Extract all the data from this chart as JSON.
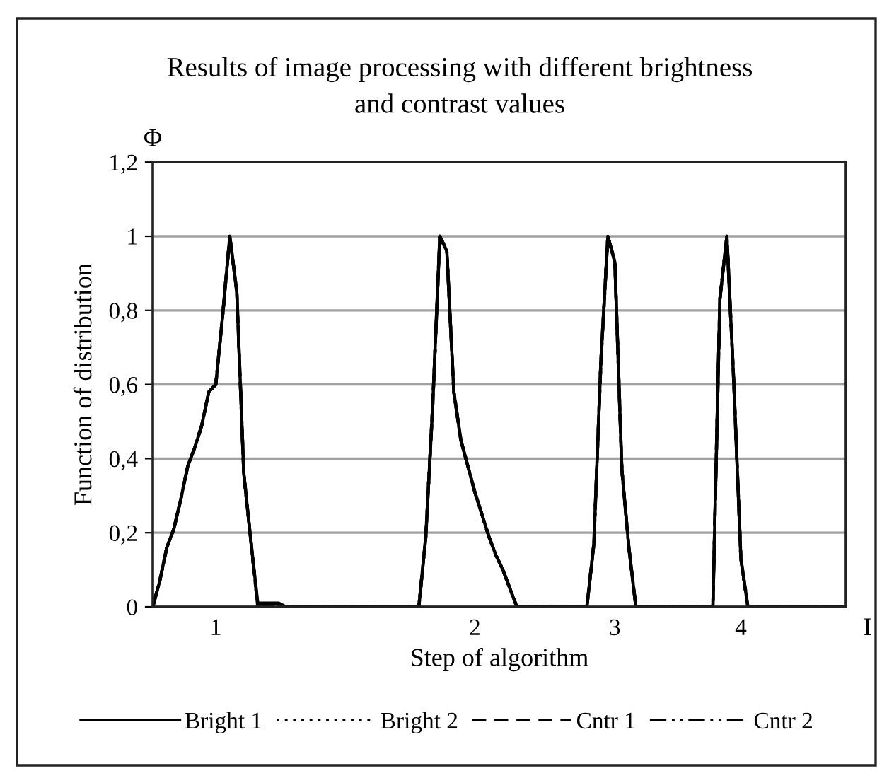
{
  "chart_data": {
    "type": "line",
    "title": "Results of image processing with different brightness\nand contrast values",
    "xlabel": "Step of algorithm",
    "ylabel": "Function of distribution",
    "annotations": [
      "Φ",
      "I"
    ],
    "categories": [
      null,
      null,
      null,
      null,
      null,
      null,
      null,
      null,
      null,
      "1",
      null,
      null,
      null,
      null,
      null,
      null,
      null,
      null,
      null,
      null,
      null,
      null,
      null,
      null,
      null,
      null,
      null,
      null,
      null,
      null,
      null,
      null,
      null,
      null,
      null,
      null,
      null,
      null,
      null,
      null,
      null,
      null,
      null,
      null,
      null,
      null,
      "2",
      null,
      null,
      null,
      null,
      null,
      null,
      null,
      null,
      null,
      null,
      null,
      null,
      null,
      null,
      null,
      null,
      null,
      null,
      null,
      "3",
      null,
      null,
      null,
      null,
      null,
      null,
      null,
      null,
      null,
      null,
      null,
      null,
      null,
      null,
      null,
      null,
      null,
      "4",
      null,
      null,
      null,
      null,
      null,
      null,
      null,
      null,
      null,
      null,
      null,
      null,
      null,
      null,
      null
    ],
    "series": [
      {
        "name": "Bright 1",
        "color": "#000000",
        "line_style": "solid",
        "values": [
          0,
          0.07,
          0.16,
          0.21,
          0.29,
          0.38,
          0.43,
          0.49,
          0.58,
          0.6,
          0.79,
          1.0,
          0.85,
          0.36,
          0.18,
          0.01,
          0.01,
          0.01,
          0.01,
          0,
          0,
          0,
          0,
          0,
          0,
          0,
          0,
          0,
          0,
          0,
          0,
          0,
          0,
          0,
          0,
          0,
          0,
          0,
          0,
          0.19,
          0.55,
          1.0,
          0.96,
          0.58,
          0.45,
          0.38,
          0.31,
          0.25,
          0.19,
          0.14,
          0.1,
          0.05,
          0,
          0,
          0,
          0,
          0,
          0,
          0,
          0,
          0,
          0,
          0,
          0.17,
          0.66,
          1.0,
          0.93,
          0.37,
          0.16,
          0,
          0,
          0,
          0,
          0,
          0,
          0,
          0,
          0,
          0,
          0,
          0,
          0.83,
          1.0,
          0.6,
          0.13,
          0,
          0,
          0,
          0,
          0,
          0,
          0,
          0,
          0,
          0,
          0,
          0,
          0,
          0,
          0
        ]
      },
      {
        "name": "Bright 2",
        "color": "#000000",
        "line_style": "dotted",
        "values": [
          0,
          0.07,
          0.16,
          0.21,
          0.29,
          0.38,
          0.43,
          0.49,
          0.58,
          0.6,
          0.79,
          1.0,
          0.85,
          0.36,
          0.18,
          0,
          0,
          0,
          0,
          0,
          0,
          0,
          0,
          0,
          0,
          0,
          0,
          0,
          0,
          0,
          0,
          0,
          0,
          0,
          0,
          0,
          0,
          0,
          0,
          0.19,
          0.55,
          1.0,
          0.96,
          0.58,
          0.45,
          0.38,
          0.31,
          0.25,
          0.19,
          0.14,
          0.1,
          0.05,
          0,
          0,
          0,
          0,
          0,
          0,
          0,
          0,
          0,
          0,
          0,
          0.17,
          0.66,
          1.0,
          0.93,
          0.37,
          0.16,
          0,
          0,
          0,
          0,
          0,
          0,
          0,
          0,
          0,
          0,
          0,
          0,
          0.83,
          1.0,
          0.6,
          0.13,
          0,
          0,
          0,
          0,
          0,
          0,
          0,
          0,
          0,
          0,
          0,
          0,
          0,
          0,
          0
        ]
      },
      {
        "name": "Cntr 1",
        "color": "#000000",
        "line_style": "dashed",
        "values": [
          0,
          0.07,
          0.16,
          0.21,
          0.29,
          0.38,
          0.43,
          0.49,
          0.58,
          0.6,
          0.79,
          1.0,
          0.85,
          0.36,
          0.18,
          0,
          0,
          0,
          0,
          0,
          0,
          0,
          0,
          0,
          0,
          0,
          0,
          0,
          0,
          0,
          0,
          0,
          0,
          0,
          0,
          0,
          0,
          0,
          0,
          0.19,
          0.55,
          1.0,
          0.96,
          0.58,
          0.45,
          0.38,
          0.31,
          0.25,
          0.19,
          0.14,
          0.1,
          0.05,
          0,
          0,
          0,
          0,
          0,
          0,
          0,
          0,
          0,
          0,
          0,
          0.17,
          0.66,
          1.0,
          0.93,
          0.37,
          0.16,
          0,
          0,
          0,
          0,
          0,
          0,
          0,
          0,
          0,
          0,
          0,
          0,
          0.83,
          1.0,
          0.6,
          0.13,
          0,
          0,
          0,
          0,
          0,
          0,
          0,
          0,
          0,
          0,
          0,
          0,
          0,
          0,
          0
        ]
      },
      {
        "name": "Cntr 2",
        "color": "#000000",
        "line_style": "dashdot",
        "values": [
          0,
          0.07,
          0.16,
          0.21,
          0.29,
          0.38,
          0.43,
          0.49,
          0.58,
          0.6,
          0.79,
          1.0,
          0.85,
          0.36,
          0.18,
          0,
          0,
          0,
          0,
          0,
          0,
          0,
          0,
          0,
          0,
          0,
          0,
          0,
          0,
          0,
          0,
          0,
          0,
          0,
          0,
          0,
          0,
          0,
          0,
          0.19,
          0.55,
          1.0,
          0.96,
          0.58,
          0.45,
          0.38,
          0.31,
          0.25,
          0.19,
          0.14,
          0.1,
          0.05,
          0,
          0,
          0,
          0,
          0,
          0,
          0,
          0,
          0,
          0,
          0,
          0.17,
          0.66,
          1.0,
          0.93,
          0.37,
          0.16,
          0,
          0,
          0,
          0,
          0,
          0,
          0,
          0,
          0,
          0,
          0,
          0,
          0.83,
          1.0,
          0.6,
          0.13,
          0,
          0,
          0,
          0,
          0,
          0,
          0,
          0,
          0,
          0,
          0,
          0,
          0,
          0,
          0
        ]
      }
    ],
    "ylim": [
      0,
      1.2
    ],
    "yticks": [
      0,
      {
        "value": 0.2,
        "label": "0,2"
      },
      {
        "value": 0.4,
        "label": "0,4"
      },
      {
        "value": 0.6,
        "label": "0,6"
      },
      {
        "value": 0.8,
        "label": "0,8"
      },
      1,
      {
        "value": 1.2,
        "label": "1,2"
      }
    ],
    "grid": "y",
    "legend": "bottom"
  }
}
